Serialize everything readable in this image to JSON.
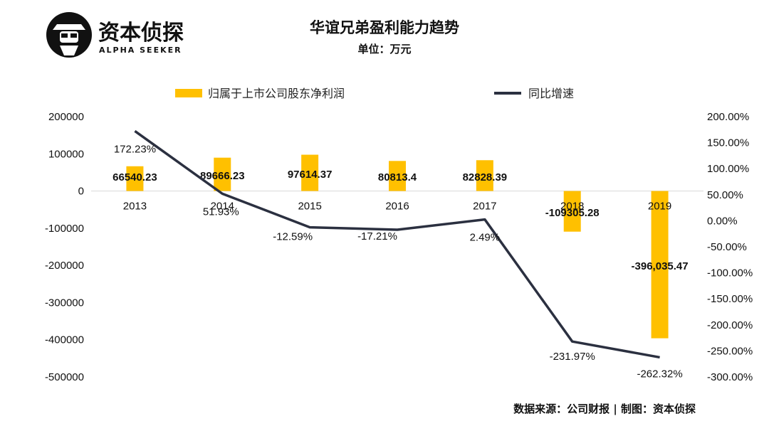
{
  "brand": {
    "name_cn": "资本侦探",
    "name_en": "ALPHA SEEKER"
  },
  "header": {
    "title": "华谊兄弟盈利能力趋势",
    "unit": "单位：万元"
  },
  "source": "数据来源：公司财报 | 制图：资本侦探",
  "colors": {
    "bar": "#FFC000",
    "line": "#2B3040"
  },
  "chart_data": {
    "type": "bar+line",
    "categories": [
      "2013",
      "2014",
      "2015",
      "2016",
      "2017",
      "2018",
      "2019"
    ],
    "series": [
      {
        "name": "归属于上市公司股东净利润",
        "type": "bar",
        "axis": "left",
        "values": [
          66540.23,
          89666.23,
          97614.37,
          80813.4,
          82828.39,
          -109305.28,
          -396035.47
        ],
        "labels": [
          "66540.23",
          "89666.23",
          "97614.37",
          "80813.4",
          "82828.39",
          "-109305.28",
          "-396,035.47"
        ]
      },
      {
        "name": "同比增速",
        "type": "line",
        "axis": "right",
        "values": [
          172.23,
          51.93,
          -12.59,
          -17.21,
          2.49,
          -231.97,
          -262.32
        ],
        "labels": [
          "172.23%",
          "51.93%",
          "-12.59%",
          "-17.21%",
          "2.49%",
          "-231.97%",
          "-262.32%"
        ]
      }
    ],
    "left_axis": {
      "range": [
        -500000,
        200000
      ],
      "ticks": [
        "200000",
        "100000",
        "0",
        "-100000",
        "-200000",
        "-300000",
        "-400000",
        "-500000"
      ]
    },
    "right_axis": {
      "range": [
        -300,
        200
      ],
      "ticks": [
        "200.00%",
        "150.00%",
        "100.00%",
        "50.00%",
        "0.00%",
        "-50.00%",
        "-100.00%",
        "-150.00%",
        "-200.00%",
        "-250.00%",
        "-300.00%"
      ]
    },
    "legend_position": "top",
    "grid": false
  }
}
